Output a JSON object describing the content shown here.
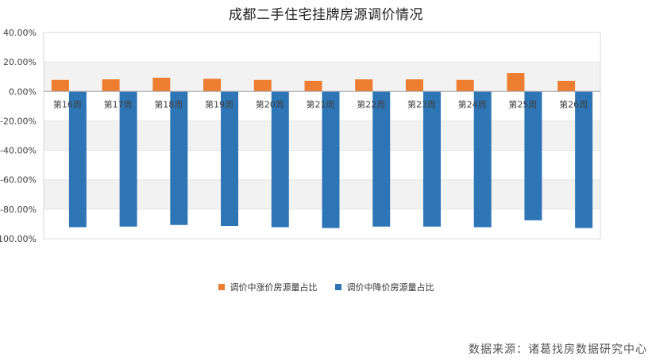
{
  "chart_data": {
    "type": "bar",
    "title": "成都二手住宅挂牌房源调价情况",
    "categories": [
      "第16周",
      "第17周",
      "第18周",
      "第19周",
      "第20周",
      "第21周",
      "第22周",
      "第23周",
      "第24周",
      "第25周",
      "第26周"
    ],
    "series": [
      {
        "name": "调价中涨价房源量占比",
        "color": "#ed7d31",
        "values": [
          7.8,
          8.2,
          9.3,
          8.6,
          7.8,
          7.2,
          8.2,
          8.2,
          7.8,
          12.5,
          7.2
        ]
      },
      {
        "name": "调价中降价房源量占比",
        "color": "#2e75b6",
        "values": [
          -92.2,
          -91.8,
          -90.7,
          -91.4,
          -92.2,
          -92.8,
          -91.8,
          -91.8,
          -92.2,
          -87.5,
          -92.8
        ]
      }
    ],
    "ylim": [
      -100,
      40
    ],
    "yticks": [
      "40.00%",
      "20.00%",
      "0.00%",
      "-20.00%",
      "-40.00%",
      "-60.00%",
      "-80.00%",
      "-100.00%"
    ],
    "xlabel": "",
    "ylabel": "",
    "grid": true,
    "legend": "bottom"
  },
  "source_note": "数据来源：诸葛找房数据研究中心"
}
